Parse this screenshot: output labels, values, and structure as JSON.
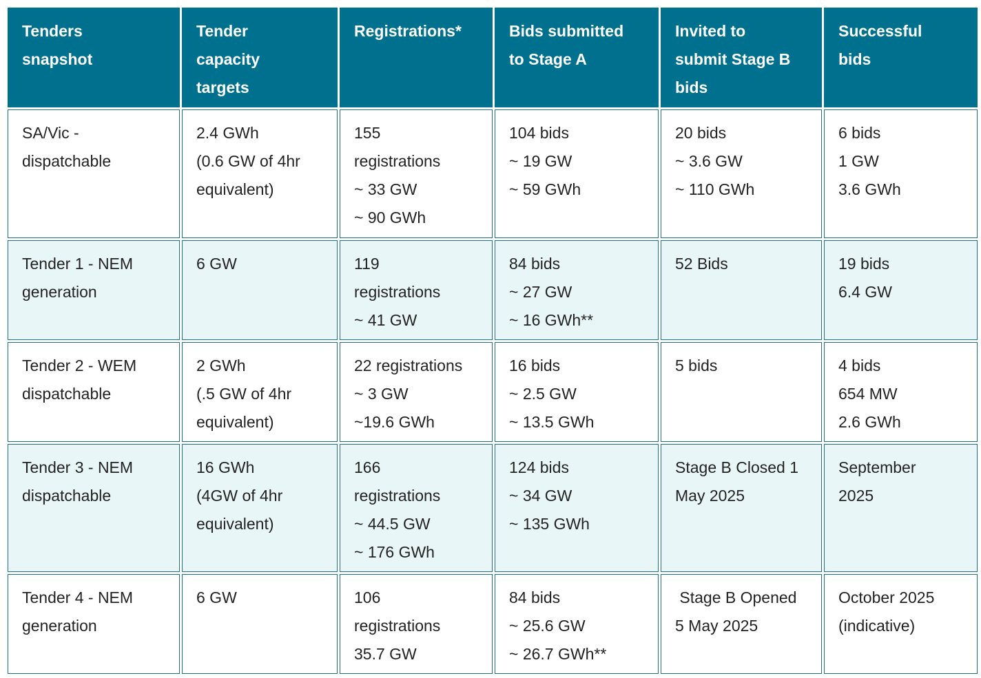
{
  "table": {
    "headers": [
      [
        "Tenders",
        "snapshot"
      ],
      [
        "Tender",
        "capacity",
        "targets"
      ],
      [
        "Registrations*"
      ],
      [
        "Bids submitted",
        "to Stage A"
      ],
      [
        "Invited to",
        "submit Stage B",
        "bids"
      ],
      [
        "Successful",
        "bids"
      ]
    ],
    "rows": [
      [
        [
          "SA/Vic -",
          "dispatchable"
        ],
        [
          "2.4 GWh",
          "(0.6 GW of 4hr",
          "equivalent)"
        ],
        [
          "155",
          "registrations",
          "~ 33 GW",
          "~ 90 GWh"
        ],
        [
          "104 bids",
          "~ 19 GW",
          "~ 59 GWh"
        ],
        [
          "20 bids",
          "~ 3.6 GW",
          "~ 110 GWh"
        ],
        [
          "6 bids",
          "1 GW",
          "3.6 GWh"
        ]
      ],
      [
        [
          "Tender 1 - NEM",
          "generation"
        ],
        [
          "6 GW"
        ],
        [
          "119",
          "registrations",
          "~ 41 GW"
        ],
        [
          "84 bids",
          "~ 27 GW",
          "~ 16 GWh**"
        ],
        [
          "52 Bids"
        ],
        [
          "19 bids",
          "6.4 GW"
        ]
      ],
      [
        [
          "Tender 2 - WEM",
          "dispatchable"
        ],
        [
          "2 GWh",
          "(.5 GW of 4hr",
          "equivalent)"
        ],
        [
          "22 registrations",
          "~ 3 GW",
          "~19.6 GWh"
        ],
        [
          "16 bids",
          "~ 2.5 GW",
          "~ 13.5 GWh"
        ],
        [
          "5 bids"
        ],
        [
          "4 bids",
          "654 MW",
          "2.6 GWh"
        ]
      ],
      [
        [
          "Tender 3 - NEM",
          "dispatchable"
        ],
        [
          "16 GWh",
          "(4GW of 4hr",
          "equivalent)"
        ],
        [
          "166",
          "registrations",
          "~ 44.5 GW",
          "~ 176 GWh"
        ],
        [
          "124 bids",
          "~ 34 GW",
          "~ 135 GWh"
        ],
        [
          "Stage B Closed 1",
          "May 2025"
        ],
        [
          "September",
          "2025"
        ]
      ],
      [
        [
          "Tender 4 - NEM",
          "generation"
        ],
        [
          "6 GW"
        ],
        [
          "106",
          "registrations",
          "35.7 GW"
        ],
        [
          "84 bids",
          "~ 25.6 GW",
          "~ 26.7 GWh**"
        ],
        [
          " Stage B Opened",
          "5 May 2025"
        ],
        [
          "October 2025",
          "(indicative)"
        ]
      ]
    ]
  }
}
